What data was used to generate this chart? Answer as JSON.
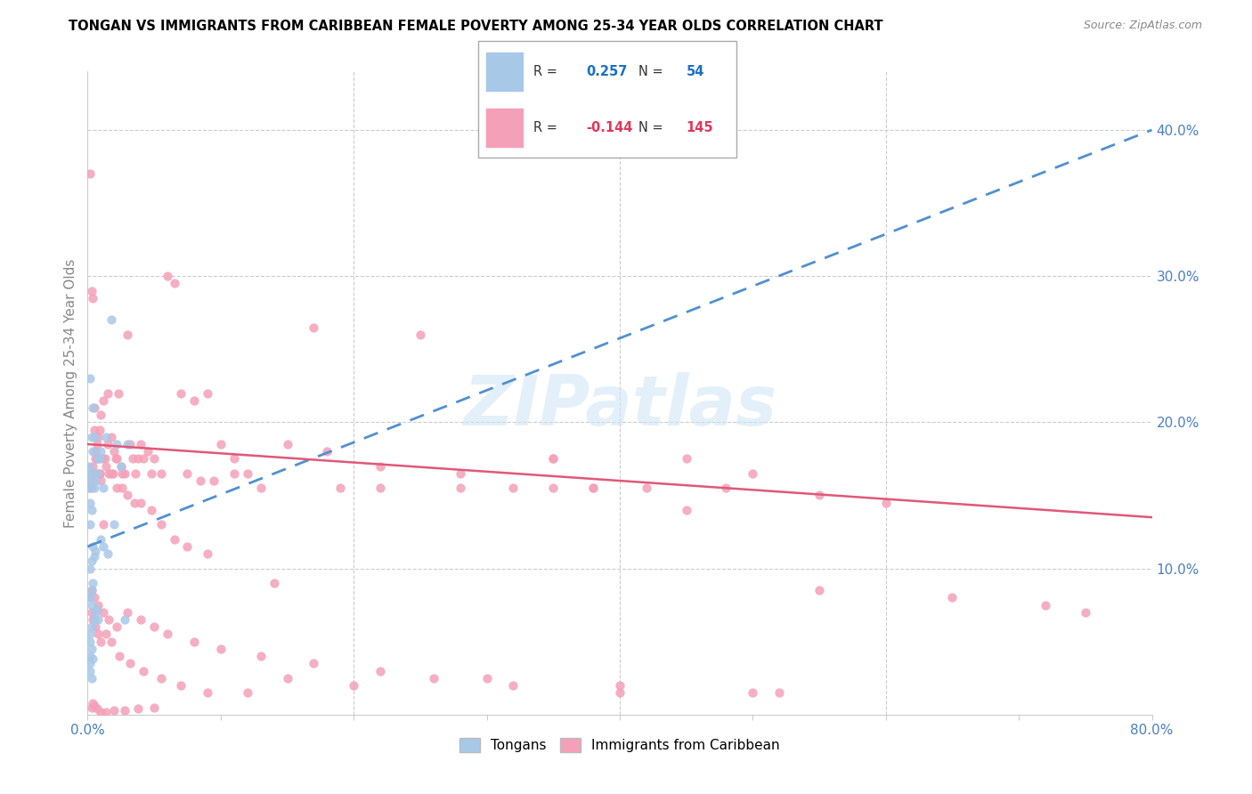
{
  "title": "TONGAN VS IMMIGRANTS FROM CARIBBEAN FEMALE POVERTY AMONG 25-34 YEAR OLDS CORRELATION CHART",
  "source": "Source: ZipAtlas.com",
  "ylabel": "Female Poverty Among 25-34 Year Olds",
  "xlim": [
    0.0,
    0.8
  ],
  "ylim": [
    0.0,
    0.44
  ],
  "color_tongans": "#a8c8e8",
  "color_caribbean": "#f4a0b8",
  "color_trend_tongans": "#5090d0",
  "color_trend_caribbean": "#e05878",
  "tongans_x": [
    0.001,
    0.001,
    0.001,
    0.001,
    0.002,
    0.002,
    0.002,
    0.002,
    0.002,
    0.002,
    0.002,
    0.002,
    0.002,
    0.003,
    0.003,
    0.003,
    0.003,
    0.003,
    0.003,
    0.003,
    0.003,
    0.004,
    0.004,
    0.004,
    0.004,
    0.004,
    0.005,
    0.005,
    0.005,
    0.005,
    0.006,
    0.006,
    0.006,
    0.007,
    0.007,
    0.008,
    0.008,
    0.009,
    0.01,
    0.01,
    0.012,
    0.012,
    0.014,
    0.015,
    0.018,
    0.02,
    0.022,
    0.025,
    0.028,
    0.03,
    0.002,
    0.003,
    0.002,
    0.002
  ],
  "tongans_y": [
    0.17,
    0.16,
    0.155,
    0.08,
    0.165,
    0.155,
    0.145,
    0.13,
    0.1,
    0.08,
    0.055,
    0.05,
    0.04,
    0.19,
    0.165,
    0.14,
    0.105,
    0.085,
    0.075,
    0.06,
    0.045,
    0.21,
    0.18,
    0.115,
    0.09,
    0.038,
    0.155,
    0.19,
    0.108,
    0.065,
    0.16,
    0.112,
    0.07,
    0.165,
    0.072,
    0.175,
    0.065,
    0.175,
    0.18,
    0.12,
    0.155,
    0.115,
    0.19,
    0.11,
    0.27,
    0.13,
    0.185,
    0.17,
    0.065,
    0.185,
    0.035,
    0.025,
    0.03,
    0.23
  ],
  "tongans_trend_x": [
    0.0,
    0.8
  ],
  "tongans_trend_y": [
    0.115,
    0.4
  ],
  "caribbean_trend_x": [
    0.0,
    0.8
  ],
  "caribbean_trend_y": [
    0.185,
    0.135
  ],
  "caribbean_x": [
    0.002,
    0.003,
    0.003,
    0.004,
    0.004,
    0.005,
    0.005,
    0.006,
    0.006,
    0.007,
    0.007,
    0.008,
    0.008,
    0.009,
    0.009,
    0.01,
    0.01,
    0.011,
    0.012,
    0.013,
    0.014,
    0.015,
    0.016,
    0.018,
    0.019,
    0.02,
    0.021,
    0.022,
    0.023,
    0.025,
    0.026,
    0.028,
    0.03,
    0.032,
    0.034,
    0.036,
    0.038,
    0.04,
    0.042,
    0.045,
    0.048,
    0.05,
    0.055,
    0.06,
    0.065,
    0.07,
    0.075,
    0.08,
    0.085,
    0.09,
    0.095,
    0.1,
    0.11,
    0.12,
    0.13,
    0.15,
    0.17,
    0.19,
    0.22,
    0.25,
    0.28,
    0.32,
    0.35,
    0.38,
    0.42,
    0.45,
    0.48,
    0.5,
    0.55,
    0.6,
    0.003,
    0.005,
    0.007,
    0.009,
    0.012,
    0.015,
    0.018,
    0.022,
    0.026,
    0.03,
    0.035,
    0.04,
    0.048,
    0.055,
    0.065,
    0.075,
    0.09,
    0.11,
    0.14,
    0.18,
    0.22,
    0.28,
    0.35,
    0.45,
    0.55,
    0.65,
    0.72,
    0.75,
    0.003,
    0.005,
    0.008,
    0.012,
    0.016,
    0.022,
    0.03,
    0.04,
    0.05,
    0.06,
    0.08,
    0.1,
    0.13,
    0.17,
    0.22,
    0.3,
    0.4,
    0.52,
    0.38,
    0.35,
    0.003,
    0.004,
    0.006,
    0.008,
    0.01,
    0.014,
    0.018,
    0.024,
    0.032,
    0.042,
    0.055,
    0.07,
    0.09,
    0.12,
    0.15,
    0.2,
    0.26,
    0.32,
    0.4,
    0.5,
    0.003,
    0.004,
    0.005,
    0.007,
    0.01,
    0.014,
    0.02,
    0.028,
    0.038,
    0.05
  ],
  "caribbean_y": [
    0.37,
    0.29,
    0.16,
    0.285,
    0.17,
    0.21,
    0.195,
    0.18,
    0.175,
    0.185,
    0.165,
    0.19,
    0.175,
    0.195,
    0.165,
    0.205,
    0.16,
    0.175,
    0.215,
    0.175,
    0.17,
    0.22,
    0.165,
    0.19,
    0.165,
    0.18,
    0.175,
    0.175,
    0.22,
    0.17,
    0.165,
    0.165,
    0.26,
    0.185,
    0.175,
    0.165,
    0.175,
    0.185,
    0.175,
    0.18,
    0.165,
    0.175,
    0.165,
    0.3,
    0.295,
    0.22,
    0.165,
    0.215,
    0.16,
    0.22,
    0.16,
    0.185,
    0.175,
    0.165,
    0.155,
    0.185,
    0.265,
    0.155,
    0.155,
    0.26,
    0.155,
    0.155,
    0.175,
    0.155,
    0.155,
    0.175,
    0.155,
    0.165,
    0.15,
    0.145,
    0.155,
    0.165,
    0.175,
    0.165,
    0.13,
    0.185,
    0.165,
    0.155,
    0.155,
    0.15,
    0.145,
    0.145,
    0.14,
    0.13,
    0.12,
    0.115,
    0.11,
    0.165,
    0.09,
    0.18,
    0.17,
    0.165,
    0.155,
    0.14,
    0.085,
    0.08,
    0.075,
    0.07,
    0.085,
    0.08,
    0.075,
    0.07,
    0.065,
    0.06,
    0.07,
    0.065,
    0.06,
    0.055,
    0.05,
    0.045,
    0.04,
    0.035,
    0.03,
    0.025,
    0.02,
    0.015,
    0.155,
    0.175,
    0.07,
    0.065,
    0.06,
    0.055,
    0.05,
    0.055,
    0.05,
    0.04,
    0.035,
    0.03,
    0.025,
    0.02,
    0.015,
    0.015,
    0.025,
    0.02,
    0.025,
    0.02,
    0.015,
    0.015,
    0.005,
    0.008,
    0.006,
    0.004,
    0.002,
    0.002,
    0.003,
    0.003,
    0.004,
    0.005
  ]
}
